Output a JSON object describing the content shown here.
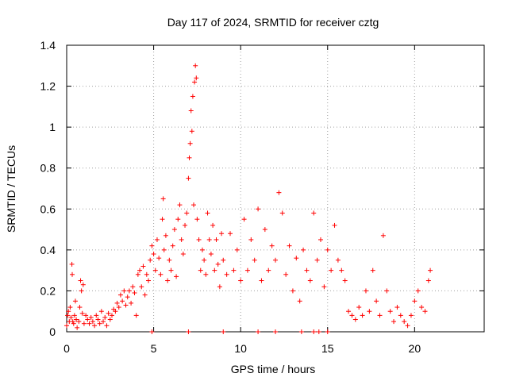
{
  "chart_data": {
    "type": "scatter",
    "title": "Day 117 of 2024, SRMTID for receiver cztg",
    "xlabel": "GPS time / hours",
    "ylabel": "SRMTID / TECUs",
    "xlim": [
      0,
      24
    ],
    "ylim": [
      0,
      1.4
    ],
    "x_ticks": [
      0,
      5,
      10,
      15,
      20
    ],
    "x_tick_labels": [
      "0",
      "5",
      "10",
      "15",
      "20"
    ],
    "y_ticks": [
      0,
      0.2,
      0.4,
      0.6,
      0.8,
      1.0,
      1.2,
      1.4
    ],
    "y_tick_labels": [
      "0",
      "0.2",
      "0.4",
      "0.6",
      "0.8",
      "1",
      "1.2",
      "1.4"
    ],
    "grid": true,
    "marker": "+",
    "marker_color": "#ff0000",
    "series": [
      {
        "name": "SRMTID",
        "points": [
          [
            0.0,
            0.03
          ],
          [
            0.05,
            0.08
          ],
          [
            0.1,
            0.1
          ],
          [
            0.15,
            0.05
          ],
          [
            0.2,
            0.12
          ],
          [
            0.25,
            0.07
          ],
          [
            0.3,
            0.33
          ],
          [
            0.32,
            0.28
          ],
          [
            0.35,
            0.05
          ],
          [
            0.4,
            0.04
          ],
          [
            0.45,
            0.08
          ],
          [
            0.5,
            0.15
          ],
          [
            0.55,
            0.06
          ],
          [
            0.6,
            0.02
          ],
          [
            0.7,
            0.05
          ],
          [
            0.75,
            0.12
          ],
          [
            0.8,
            0.25
          ],
          [
            0.85,
            0.2
          ],
          [
            0.9,
            0.09
          ],
          [
            0.95,
            0.23
          ],
          [
            1.0,
            0.04
          ],
          [
            1.1,
            0.08
          ],
          [
            1.2,
            0.06
          ],
          [
            1.3,
            0.04
          ],
          [
            1.4,
            0.07
          ],
          [
            1.5,
            0.05
          ],
          [
            1.6,
            0.03
          ],
          [
            1.7,
            0.08
          ],
          [
            1.8,
            0.06
          ],
          [
            1.9,
            0.04
          ],
          [
            2.0,
            0.1
          ],
          [
            2.1,
            0.05
          ],
          [
            2.2,
            0.07
          ],
          [
            2.3,
            0.03
          ],
          [
            2.4,
            0.09
          ],
          [
            2.5,
            0.06
          ],
          [
            2.6,
            0.08
          ],
          [
            2.7,
            0.11
          ],
          [
            2.8,
            0.1
          ],
          [
            2.9,
            0.14
          ],
          [
            3.0,
            0.12
          ],
          [
            3.1,
            0.18
          ],
          [
            3.2,
            0.15
          ],
          [
            3.3,
            0.2
          ],
          [
            3.4,
            0.13
          ],
          [
            3.5,
            0.17
          ],
          [
            3.6,
            0.2
          ],
          [
            3.7,
            0.14
          ],
          [
            3.8,
            0.22
          ],
          [
            3.9,
            0.19
          ],
          [
            4.0,
            0.08
          ],
          [
            4.1,
            0.28
          ],
          [
            4.2,
            0.3
          ],
          [
            4.3,
            0.22
          ],
          [
            4.4,
            0.32
          ],
          [
            4.5,
            0.18
          ],
          [
            4.6,
            0.28
          ],
          [
            4.7,
            0.25
          ],
          [
            4.8,
            0.35
          ],
          [
            4.9,
            0.42
          ],
          [
            5.0,
            0.38
          ],
          [
            5.1,
            0.3
          ],
          [
            5.2,
            0.45
          ],
          [
            5.3,
            0.36
          ],
          [
            5.4,
            0.28
          ],
          [
            5.5,
            0.55
          ],
          [
            5.55,
            0.65
          ],
          [
            5.6,
            0.4
          ],
          [
            5.7,
            0.47
          ],
          [
            5.8,
            0.25
          ],
          [
            5.9,
            0.35
          ],
          [
            6.0,
            0.3
          ],
          [
            6.1,
            0.42
          ],
          [
            6.2,
            0.5
          ],
          [
            6.3,
            0.27
          ],
          [
            6.4,
            0.55
          ],
          [
            6.5,
            0.62
          ],
          [
            6.6,
            0.45
          ],
          [
            6.7,
            0.38
          ],
          [
            6.8,
            0.52
          ],
          [
            6.9,
            0.58
          ],
          [
            7.0,
            0.75
          ],
          [
            7.05,
            0.85
          ],
          [
            7.1,
            0.92
          ],
          [
            7.15,
            1.08
          ],
          [
            7.2,
            0.98
          ],
          [
            7.25,
            1.15
          ],
          [
            7.3,
            0.62
          ],
          [
            7.35,
            1.22
          ],
          [
            7.4,
            1.3
          ],
          [
            7.45,
            1.24
          ],
          [
            7.5,
            0.55
          ],
          [
            7.6,
            0.45
          ],
          [
            7.7,
            0.3
          ],
          [
            7.8,
            0.4
          ],
          [
            7.9,
            0.35
          ],
          [
            8.0,
            0.28
          ],
          [
            8.1,
            0.58
          ],
          [
            8.2,
            0.45
          ],
          [
            8.3,
            0.38
          ],
          [
            8.4,
            0.52
          ],
          [
            8.5,
            0.3
          ],
          [
            8.6,
            0.45
          ],
          [
            8.7,
            0.33
          ],
          [
            8.8,
            0.22
          ],
          [
            8.9,
            0.48
          ],
          [
            9.0,
            0.35
          ],
          [
            9.2,
            0.28
          ],
          [
            9.4,
            0.48
          ],
          [
            9.6,
            0.3
          ],
          [
            9.8,
            0.4
          ],
          [
            10.0,
            0.25
          ],
          [
            10.2,
            0.55
          ],
          [
            10.4,
            0.3
          ],
          [
            10.6,
            0.45
          ],
          [
            10.8,
            0.35
          ],
          [
            11.0,
            0.6
          ],
          [
            11.2,
            0.25
          ],
          [
            11.4,
            0.5
          ],
          [
            11.6,
            0.3
          ],
          [
            11.8,
            0.42
          ],
          [
            12.0,
            0.35
          ],
          [
            12.2,
            0.68
          ],
          [
            12.4,
            0.58
          ],
          [
            12.6,
            0.28
          ],
          [
            12.8,
            0.42
          ],
          [
            13.0,
            0.2
          ],
          [
            13.2,
            0.36
          ],
          [
            13.4,
            0.15
          ],
          [
            13.6,
            0.4
          ],
          [
            13.8,
            0.3
          ],
          [
            14.0,
            0.25
          ],
          [
            14.2,
            0.58
          ],
          [
            14.4,
            0.35
          ],
          [
            14.6,
            0.45
          ],
          [
            14.8,
            0.22
          ],
          [
            15.0,
            0.4
          ],
          [
            15.2,
            0.3
          ],
          [
            15.4,
            0.52
          ],
          [
            15.6,
            0.35
          ],
          [
            15.8,
            0.3
          ],
          [
            16.0,
            0.25
          ],
          [
            16.2,
            0.1
          ],
          [
            16.4,
            0.08
          ],
          [
            16.6,
            0.06
          ],
          [
            16.8,
            0.12
          ],
          [
            17.0,
            0.08
          ],
          [
            17.2,
            0.2
          ],
          [
            17.4,
            0.1
          ],
          [
            17.6,
            0.3
          ],
          [
            17.8,
            0.15
          ],
          [
            18.0,
            0.08
          ],
          [
            18.2,
            0.47
          ],
          [
            18.4,
            0.2
          ],
          [
            18.6,
            0.1
          ],
          [
            18.8,
            0.05
          ],
          [
            19.0,
            0.12
          ],
          [
            19.2,
            0.08
          ],
          [
            19.4,
            0.05
          ],
          [
            19.6,
            0.03
          ],
          [
            19.8,
            0.08
          ],
          [
            20.0,
            0.15
          ],
          [
            20.2,
            0.2
          ],
          [
            20.4,
            0.12
          ],
          [
            20.6,
            0.1
          ],
          [
            20.8,
            0.25
          ],
          [
            20.9,
            0.3
          ],
          [
            7.0,
            0.0
          ],
          [
            9.0,
            0.0
          ],
          [
            11.0,
            0.0
          ],
          [
            12.0,
            0.0
          ],
          [
            13.5,
            0.0
          ],
          [
            14.2,
            0.0
          ],
          [
            14.5,
            0.0
          ],
          [
            4.9,
            0.0
          ],
          [
            15.0,
            0.0
          ]
        ]
      }
    ]
  }
}
